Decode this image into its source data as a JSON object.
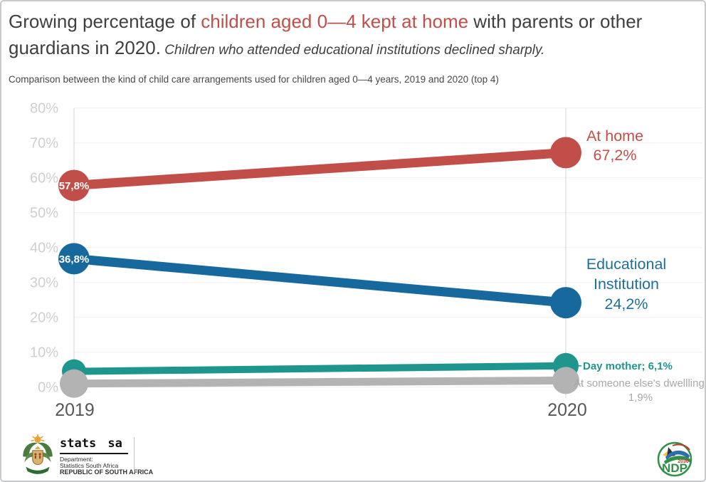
{
  "title": {
    "part1": "Growing percentage of ",
    "highlight": "children aged 0—4 kept at home",
    "part2": " with parents or other guardians in 2020.",
    "italic": " Children who attended educational institutions declined sharply."
  },
  "subtitle": "Comparison between the kind of child care arrangements used for children aged 0—4 years, 2019 and 2020 (top 4)",
  "chart_data": {
    "type": "line",
    "subtype": "slope-chart",
    "x_categories": [
      "2019",
      "2020"
    ],
    "ylim": [
      0,
      80
    ],
    "ytick_labels": [
      "0%",
      "10%",
      "20%",
      "30%",
      "40%",
      "50%",
      "60%",
      "70%",
      "80%"
    ],
    "grid": true,
    "series": [
      {
        "name": "At home",
        "color": "#c24e49",
        "values": [
          57.8,
          67.2
        ],
        "value_labels": [
          "57,8%",
          "67,2%"
        ]
      },
      {
        "name": "Educational Institution",
        "color": "#17689c",
        "values": [
          36.8,
          24.2
        ],
        "value_labels": [
          "36,8%",
          "24,2%"
        ]
      },
      {
        "name": "Day mother",
        "color": "#1f968d",
        "values": [
          4.5,
          6.1
        ],
        "value_labels": [
          null,
          "6,1%"
        ]
      },
      {
        "name": "At someone else's dwelling",
        "color": "#b3b3b3",
        "values": [
          1.0,
          1.9
        ],
        "value_labels": [
          null,
          "1,9%"
        ]
      }
    ]
  },
  "annotations": {
    "at_home": {
      "line1": "At home",
      "line2": "67,2%"
    },
    "edu": {
      "line1": "Educational",
      "line2": "Institution",
      "line3": "24,2%"
    },
    "day_mother": "Day mother; 6,1%",
    "dwelling": {
      "line1": "At someone else's dwellling;",
      "line2": "1,9%"
    }
  },
  "footer": {
    "statssa": {
      "brand": "stats sa",
      "line1": "Department:",
      "line2": "Statistics South Africa",
      "line3": "REPUBLIC OF SOUTH AFRICA"
    },
    "ndp": {
      "year": "2030",
      "name": "NDP"
    }
  }
}
